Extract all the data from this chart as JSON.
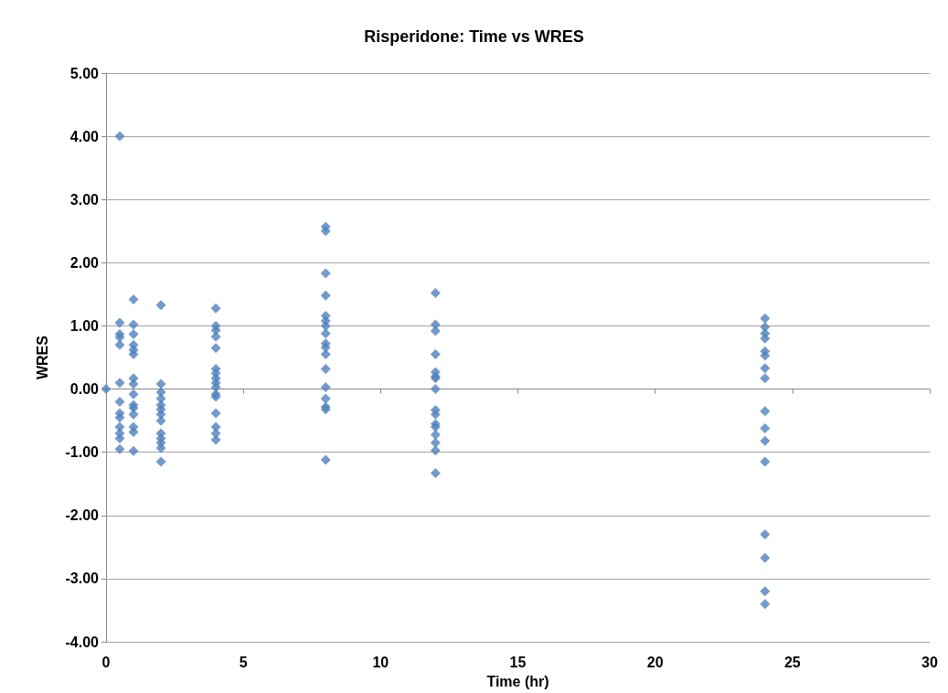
{
  "chart_data": {
    "type": "scatter",
    "title": "Risperidone: Time vs WRES",
    "xlabel": "Time (hr)",
    "ylabel": "WRES",
    "series": [
      {
        "color": "#4f81bd",
        "x": [
          0,
          0.5,
          0.5,
          0.5,
          0.5,
          0.5,
          0.5,
          0.5,
          0.5,
          0.5,
          0.5,
          0.5,
          0.5,
          0.5,
          1,
          1,
          1,
          1,
          1,
          1,
          1,
          1,
          1,
          1,
          1,
          1,
          1,
          1,
          1,
          2,
          2,
          2,
          2,
          2,
          2,
          2,
          2,
          2,
          2,
          2,
          2,
          2,
          4,
          4,
          4,
          4,
          4,
          4,
          4,
          4,
          4,
          4,
          4,
          4,
          4,
          4,
          4,
          4,
          8,
          8,
          8,
          8,
          8,
          8,
          8,
          8,
          8,
          8,
          8,
          8,
          8,
          8,
          8,
          8,
          8,
          12,
          12,
          12,
          12,
          12,
          12,
          12,
          12,
          12,
          12,
          12,
          12,
          12,
          12,
          12,
          12,
          24,
          24,
          24,
          24,
          24,
          24,
          24,
          24,
          24,
          24,
          24,
          24,
          24,
          24,
          24,
          24
        ],
        "values": [
          0,
          4.0,
          1.05,
          0.87,
          0.82,
          0.7,
          0.1,
          -0.2,
          -0.38,
          -0.45,
          -0.6,
          -0.7,
          -0.78,
          -0.95,
          1.42,
          1.02,
          0.87,
          0.7,
          0.62,
          0.55,
          0.17,
          0.08,
          -0.08,
          -0.25,
          -0.3,
          -0.4,
          -0.6,
          -0.68,
          -0.98,
          1.33,
          0.08,
          -0.05,
          -0.15,
          -0.25,
          -0.32,
          -0.4,
          -0.5,
          -0.7,
          -0.78,
          -0.85,
          -0.93,
          -1.15,
          1.28,
          1.0,
          0.93,
          0.83,
          0.65,
          0.32,
          0.25,
          0.17,
          0.1,
          0.03,
          -0.08,
          -0.12,
          -0.38,
          -0.6,
          -0.7,
          -0.8,
          2.57,
          2.5,
          1.83,
          1.48,
          1.16,
          1.08,
          1.0,
          0.88,
          0.72,
          0.66,
          0.55,
          0.32,
          0.03,
          -0.15,
          -0.28,
          -0.32,
          -1.12,
          1.52,
          1.02,
          0.92,
          0.55,
          0.27,
          0.2,
          0.17,
          0.0,
          -0.33,
          -0.4,
          -0.55,
          -0.6,
          -0.72,
          -0.85,
          -0.97,
          -1.33,
          1.12,
          0.98,
          0.88,
          0.8,
          0.6,
          0.53,
          0.33,
          0.17,
          -0.35,
          -0.62,
          -0.82,
          -1.15,
          -2.3,
          -2.67,
          -3.2,
          -3.4
        ]
      }
    ],
    "xlim": [
      0,
      30
    ],
    "xticks": [
      0,
      5,
      10,
      15,
      20,
      25,
      30
    ],
    "ylim": [
      -4,
      5
    ],
    "yticks": [
      {
        "value": -4,
        "label": "-4.00"
      },
      {
        "value": -3,
        "label": "-3.00"
      },
      {
        "value": -2,
        "label": "-2.00"
      },
      {
        "value": -1,
        "label": "-1.00"
      },
      {
        "value": 0,
        "label": "0.00"
      },
      {
        "value": 1,
        "label": "1.00"
      },
      {
        "value": 2,
        "label": "2.00"
      },
      {
        "value": 3,
        "label": "3.00"
      },
      {
        "value": 4,
        "label": "4.00"
      },
      {
        "value": 5,
        "label": "5.00"
      }
    ],
    "grid": "y",
    "marker": "diamond"
  }
}
